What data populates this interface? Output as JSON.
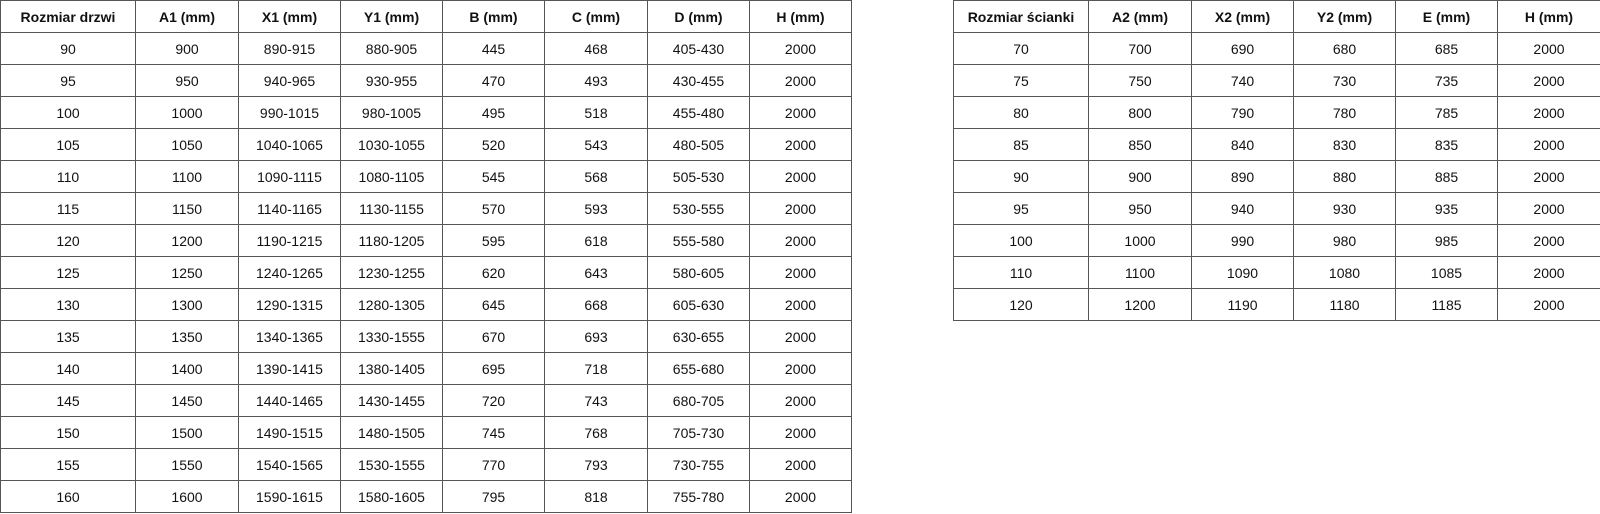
{
  "door_table": {
    "headers": [
      "Rozmiar drzwi",
      "A1 (mm)",
      "X1 (mm)",
      "Y1 (mm)",
      "B (mm)",
      "C (mm)",
      "D (mm)",
      "H (mm)"
    ],
    "rows": [
      [
        "90",
        "900",
        "890-915",
        "880-905",
        "445",
        "468",
        "405-430",
        "2000"
      ],
      [
        "95",
        "950",
        "940-965",
        "930-955",
        "470",
        "493",
        "430-455",
        "2000"
      ],
      [
        "100",
        "1000",
        "990-1015",
        "980-1005",
        "495",
        "518",
        "455-480",
        "2000"
      ],
      [
        "105",
        "1050",
        "1040-1065",
        "1030-1055",
        "520",
        "543",
        "480-505",
        "2000"
      ],
      [
        "110",
        "1100",
        "1090-1115",
        "1080-1105",
        "545",
        "568",
        "505-530",
        "2000"
      ],
      [
        "115",
        "1150",
        "1140-1165",
        "1130-1155",
        "570",
        "593",
        "530-555",
        "2000"
      ],
      [
        "120",
        "1200",
        "1190-1215",
        "1180-1205",
        "595",
        "618",
        "555-580",
        "2000"
      ],
      [
        "125",
        "1250",
        "1240-1265",
        "1230-1255",
        "620",
        "643",
        "580-605",
        "2000"
      ],
      [
        "130",
        "1300",
        "1290-1315",
        "1280-1305",
        "645",
        "668",
        "605-630",
        "2000"
      ],
      [
        "135",
        "1350",
        "1340-1365",
        "1330-1555",
        "670",
        "693",
        "630-655",
        "2000"
      ],
      [
        "140",
        "1400",
        "1390-1415",
        "1380-1405",
        "695",
        "718",
        "655-680",
        "2000"
      ],
      [
        "145",
        "1450",
        "1440-1465",
        "1430-1455",
        "720",
        "743",
        "680-705",
        "2000"
      ],
      [
        "150",
        "1500",
        "1490-1515",
        "1480-1505",
        "745",
        "768",
        "705-730",
        "2000"
      ],
      [
        "155",
        "1550",
        "1540-1565",
        "1530-1555",
        "770",
        "793",
        "730-755",
        "2000"
      ],
      [
        "160",
        "1600",
        "1590-1615",
        "1580-1605",
        "795",
        "818",
        "755-780",
        "2000"
      ]
    ]
  },
  "wall_table": {
    "headers": [
      "Rozmiar ścianki",
      "A2 (mm)",
      "X2 (mm)",
      "Y2 (mm)",
      "E (mm)",
      "H (mm)"
    ],
    "rows": [
      [
        "70",
        "700",
        "690",
        "680",
        "685",
        "2000"
      ],
      [
        "75",
        "750",
        "740",
        "730",
        "735",
        "2000"
      ],
      [
        "80",
        "800",
        "790",
        "780",
        "785",
        "2000"
      ],
      [
        "85",
        "850",
        "840",
        "830",
        "835",
        "2000"
      ],
      [
        "90",
        "900",
        "890",
        "880",
        "885",
        "2000"
      ],
      [
        "95",
        "950",
        "940",
        "930",
        "935",
        "2000"
      ],
      [
        "100",
        "1000",
        "990",
        "980",
        "985",
        "2000"
      ],
      [
        "110",
        "1100",
        "1090",
        "1080",
        "1085",
        "2000"
      ],
      [
        "120",
        "1200",
        "1190",
        "1180",
        "1185",
        "2000"
      ]
    ]
  }
}
